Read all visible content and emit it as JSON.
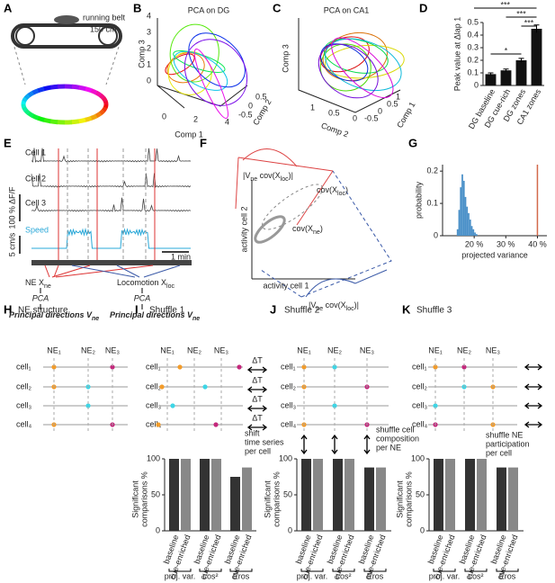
{
  "panels": {
    "A": {
      "letter": "A",
      "labels": [
        "running belt",
        "150 cm"
      ]
    },
    "B": {
      "letter": "B",
      "title": "PCA on DG",
      "axis_labels": [
        "Comp 1",
        "Comp 2",
        "Comp 3"
      ],
      "comp1_ticks": [
        "0",
        "2",
        "4"
      ],
      "comp2_ticks": [
        "-0.5",
        "0",
        "0.5"
      ],
      "comp3_ticks": [
        "0",
        "1",
        "2",
        "3",
        "4"
      ]
    },
    "C": {
      "letter": "C",
      "title": "PCA on CA1",
      "axis_labels": [
        "Comp 1",
        "Comp 2",
        "Comp 3"
      ],
      "comp2_ticks": [
        "1",
        "0.5",
        "0"
      ],
      "comp1_ticks": [
        "-0.5",
        "0",
        "0.5",
        "1"
      ]
    },
    "D": {
      "letter": "D"
    },
    "E": {
      "letter": "E",
      "cells": [
        "Cell 1",
        "Cell 2",
        "Cell 3"
      ],
      "scale_f": "100 % ΔF/F",
      "scale_speed": "5 cm/s",
      "speed": "Speed",
      "time": "1 min",
      "ne": [
        {
          "t": "NE X"
        },
        {
          "s": "ne"
        }
      ],
      "loc": [
        {
          "t": "Locomotion X"
        },
        {
          "s": "loc"
        }
      ],
      "pca": "PCA",
      "pd": [
        {
          "t": "Principal directions V"
        },
        {
          "s": "ne"
        }
      ]
    },
    "F": {
      "letter": "F",
      "xlabel": "activity cell 1",
      "ylabel": "activity cell 2",
      "proj": [
        {
          "t": "|V"
        },
        {
          "s": "ne"
        },
        {
          "t": " cov(X"
        },
        {
          "s": "loc"
        },
        {
          "t": ")|"
        }
      ],
      "cov_ne": [
        {
          "t": "cov(X"
        },
        {
          "s": "ne"
        },
        {
          "t": ")"
        }
      ],
      "cov_loc": [
        {
          "t": "cov(X"
        },
        {
          "s": "loc"
        },
        {
          "t": ")"
        }
      ]
    },
    "G": {
      "letter": "G"
    },
    "H": {
      "letter": "H",
      "title": "NE structure",
      "ne": [
        "NE₁",
        "NE₂",
        "NE₃"
      ],
      "cells": [
        "cell₁",
        "cell₂",
        "cell₃",
        "cell₄"
      ]
    },
    "I": {
      "letter": "I",
      "title": "Shuffle 1",
      "ne": [
        "NE₁",
        "NE₂",
        "NE₃"
      ],
      "cells": [
        "cell₁",
        "cell₂",
        "cell₃",
        "cell₄"
      ],
      "shift": "ΔT",
      "note": [
        "shift",
        "time series",
        "per cell"
      ]
    },
    "J": {
      "letter": "J",
      "title": "Shuffle 2",
      "ne": [
        "NE₁",
        "NE₂",
        "NE₃"
      ],
      "cells": [
        "cell₁",
        "cell₂",
        "cell₃",
        "cell₄"
      ],
      "note": [
        "shuffle cell",
        "composition",
        "per NE"
      ]
    },
    "K": {
      "letter": "K",
      "title": "Shuffle 3",
      "ne": [
        "NE₁",
        "NE₂",
        "NE₃"
      ],
      "cells": [
        "cell₁",
        "cell₂",
        "cell₃",
        "cell₄"
      ],
      "note": [
        "shuffle NE",
        "participation",
        "per cell"
      ]
    }
  },
  "chart_data": [
    {
      "type": "bar",
      "categories": [
        "DG baseline",
        "DG cue-rich",
        "DG zones",
        "CA1 zones"
      ],
      "values": [
        0.09,
        0.12,
        0.2,
        0.45
      ],
      "errors": [
        0.01,
        0.01,
        0.015,
        0.03
      ],
      "color": "#111111",
      "ylabel": "Peak value at Δlap 1",
      "ylim": [
        0,
        0.5
      ],
      "yticks": [
        0,
        0.1,
        0.2,
        0.3,
        0.4,
        0.5
      ],
      "significance": [
        "***",
        "***",
        "***",
        "*"
      ]
    },
    {
      "type": "histogram",
      "bins": [
        14.5,
        15,
        15.5,
        16,
        16.5,
        17,
        17.5,
        18,
        18.5,
        19,
        19.5,
        20,
        20.5,
        21
      ],
      "values": [
        0.02,
        0.08,
        0.15,
        0.19,
        0.17,
        0.12,
        0.09,
        0.07,
        0.05,
        0.03,
        0.02,
        0.01,
        0.005
      ],
      "color": "#4a90c8",
      "observed": 40,
      "observed_color": "#d2694a",
      "xlabel": "projected variance",
      "ylabel": "probability",
      "xlim": [
        10,
        43
      ],
      "xticks": [
        {
          "value": 20,
          "label": "20 %"
        },
        {
          "value": 30,
          "label": "30 %"
        },
        {
          "value": 40,
          "label": "40 %"
        }
      ],
      "ylim": [
        0,
        0.22
      ],
      "yticks": [
        0,
        0.1,
        0.2
      ]
    },
    {
      "type": "grouped",
      "categories": [
        "baseline",
        "cue-enriched",
        "baseline",
        "cue-enriched",
        "baseline",
        "cue-enriched"
      ],
      "groups": [
        "proj. var.",
        "cos²",
        "Eros"
      ],
      "values": [
        100,
        100,
        100,
        100,
        75,
        88
      ],
      "colors": [
        "#333333",
        "#888888"
      ],
      "ylabel": [
        "Significant",
        "comparisons %"
      ],
      "ylim": [
        0,
        100
      ],
      "yticks": [
        0,
        50,
        100
      ]
    },
    {
      "type": "grouped",
      "categories": [
        "baseline",
        "cue-enriched",
        "baseline",
        "cue-enriched",
        "baseline",
        "cue-enriched"
      ],
      "groups": [
        "proj. var.",
        "cos²",
        "Eros"
      ],
      "values": [
        100,
        100,
        100,
        100,
        88,
        88
      ],
      "colors": [
        "#333333",
        "#888888"
      ],
      "ylabel": [
        "Significant",
        "comparisons %"
      ],
      "ylim": [
        0,
        100
      ],
      "yticks": [
        0,
        50,
        100
      ]
    },
    {
      "type": "grouped",
      "categories": [
        "baseline",
        "cue-enriched",
        "baseline",
        "cue-enriched",
        "baseline",
        "cue-enriched"
      ],
      "groups": [
        "proj. var.",
        "cos²",
        "Eros"
      ],
      "values": [
        100,
        100,
        100,
        100,
        88,
        88
      ],
      "colors": [
        "#333333",
        "#888888"
      ],
      "ylabel": [
        "Significant",
        "comparisons %"
      ],
      "ylim": [
        0,
        100
      ],
      "yticks": [
        0,
        50,
        100
      ]
    }
  ]
}
